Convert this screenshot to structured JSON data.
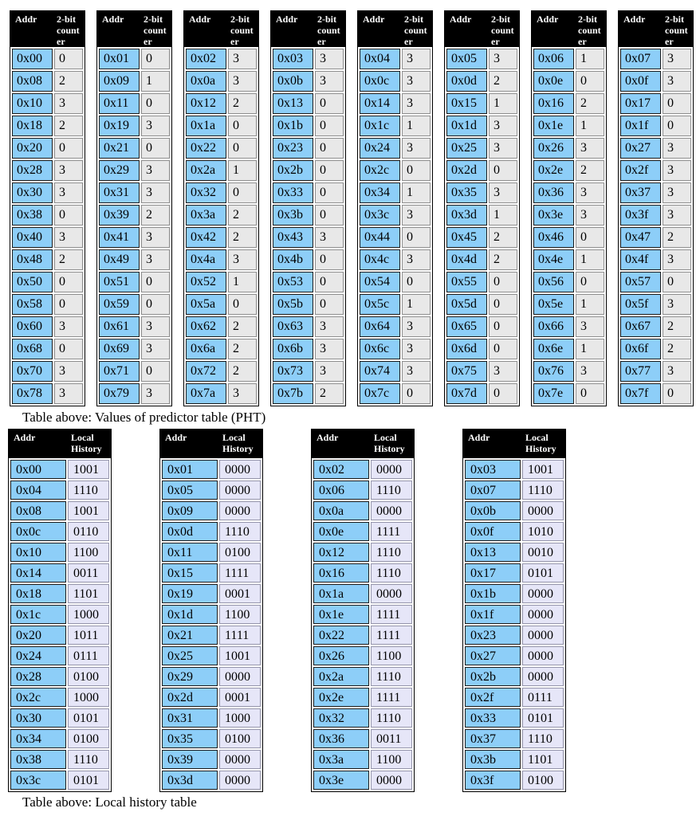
{
  "colors": {
    "header_bg": "#000000",
    "header_text": "#ffffff",
    "addr_cell": "#8DCEF8",
    "counter_cell": "#E8E8E8",
    "history_cell": "#E6E6F8",
    "page_bg": "#ffffff"
  },
  "pht": {
    "caption": "Table above: Values of predictor table (PHT)",
    "col_headers": [
      "Addr",
      "2-bit counter"
    ],
    "tables": [
      {
        "rows": [
          [
            "0x00",
            "0"
          ],
          [
            "0x08",
            "2"
          ],
          [
            "0x10",
            "3"
          ],
          [
            "0x18",
            "2"
          ],
          [
            "0x20",
            "0"
          ],
          [
            "0x28",
            "3"
          ],
          [
            "0x30",
            "3"
          ],
          [
            "0x38",
            "0"
          ],
          [
            "0x40",
            "3"
          ],
          [
            "0x48",
            "2"
          ],
          [
            "0x50",
            "0"
          ],
          [
            "0x58",
            "0"
          ],
          [
            "0x60",
            "3"
          ],
          [
            "0x68",
            "0"
          ],
          [
            "0x70",
            "3"
          ],
          [
            "0x78",
            "3"
          ]
        ]
      },
      {
        "rows": [
          [
            "0x01",
            "0"
          ],
          [
            "0x09",
            "1"
          ],
          [
            "0x11",
            "0"
          ],
          [
            "0x19",
            "3"
          ],
          [
            "0x21",
            "0"
          ],
          [
            "0x29",
            "3"
          ],
          [
            "0x31",
            "3"
          ],
          [
            "0x39",
            "2"
          ],
          [
            "0x41",
            "3"
          ],
          [
            "0x49",
            "3"
          ],
          [
            "0x51",
            "0"
          ],
          [
            "0x59",
            "0"
          ],
          [
            "0x61",
            "3"
          ],
          [
            "0x69",
            "3"
          ],
          [
            "0x71",
            "0"
          ],
          [
            "0x79",
            "3"
          ]
        ]
      },
      {
        "rows": [
          [
            "0x02",
            "3"
          ],
          [
            "0x0a",
            "3"
          ],
          [
            "0x12",
            "2"
          ],
          [
            "0x1a",
            "0"
          ],
          [
            "0x22",
            "0"
          ],
          [
            "0x2a",
            "1"
          ],
          [
            "0x32",
            "0"
          ],
          [
            "0x3a",
            "2"
          ],
          [
            "0x42",
            "2"
          ],
          [
            "0x4a",
            "3"
          ],
          [
            "0x52",
            "1"
          ],
          [
            "0x5a",
            "0"
          ],
          [
            "0x62",
            "2"
          ],
          [
            "0x6a",
            "2"
          ],
          [
            "0x72",
            "2"
          ],
          [
            "0x7a",
            "3"
          ]
        ]
      },
      {
        "rows": [
          [
            "0x03",
            "3"
          ],
          [
            "0x0b",
            "3"
          ],
          [
            "0x13",
            "0"
          ],
          [
            "0x1b",
            "0"
          ],
          [
            "0x23",
            "0"
          ],
          [
            "0x2b",
            "0"
          ],
          [
            "0x33",
            "0"
          ],
          [
            "0x3b",
            "0"
          ],
          [
            "0x43",
            "3"
          ],
          [
            "0x4b",
            "0"
          ],
          [
            "0x53",
            "0"
          ],
          [
            "0x5b",
            "0"
          ],
          [
            "0x63",
            "3"
          ],
          [
            "0x6b",
            "3"
          ],
          [
            "0x73",
            "3"
          ],
          [
            "0x7b",
            "2"
          ]
        ]
      },
      {
        "rows": [
          [
            "0x04",
            "3"
          ],
          [
            "0x0c",
            "3"
          ],
          [
            "0x14",
            "3"
          ],
          [
            "0x1c",
            "1"
          ],
          [
            "0x24",
            "3"
          ],
          [
            "0x2c",
            "0"
          ],
          [
            "0x34",
            "1"
          ],
          [
            "0x3c",
            "3"
          ],
          [
            "0x44",
            "0"
          ],
          [
            "0x4c",
            "3"
          ],
          [
            "0x54",
            "0"
          ],
          [
            "0x5c",
            "1"
          ],
          [
            "0x64",
            "3"
          ],
          [
            "0x6c",
            "3"
          ],
          [
            "0x74",
            "3"
          ],
          [
            "0x7c",
            "0"
          ]
        ]
      },
      {
        "rows": [
          [
            "0x05",
            "3"
          ],
          [
            "0x0d",
            "2"
          ],
          [
            "0x15",
            "1"
          ],
          [
            "0x1d",
            "3"
          ],
          [
            "0x25",
            "3"
          ],
          [
            "0x2d",
            "0"
          ],
          [
            "0x35",
            "3"
          ],
          [
            "0x3d",
            "1"
          ],
          [
            "0x45",
            "2"
          ],
          [
            "0x4d",
            "2"
          ],
          [
            "0x55",
            "0"
          ],
          [
            "0x5d",
            "0"
          ],
          [
            "0x65",
            "0"
          ],
          [
            "0x6d",
            "0"
          ],
          [
            "0x75",
            "3"
          ],
          [
            "0x7d",
            "0"
          ]
        ]
      },
      {
        "rows": [
          [
            "0x06",
            "1"
          ],
          [
            "0x0e",
            "0"
          ],
          [
            "0x16",
            "2"
          ],
          [
            "0x1e",
            "1"
          ],
          [
            "0x26",
            "3"
          ],
          [
            "0x2e",
            "2"
          ],
          [
            "0x36",
            "3"
          ],
          [
            "0x3e",
            "3"
          ],
          [
            "0x46",
            "0"
          ],
          [
            "0x4e",
            "1"
          ],
          [
            "0x56",
            "0"
          ],
          [
            "0x5e",
            "1"
          ],
          [
            "0x66",
            "3"
          ],
          [
            "0x6e",
            "1"
          ],
          [
            "0x76",
            "3"
          ],
          [
            "0x7e",
            "0"
          ]
        ]
      },
      {
        "rows": [
          [
            "0x07",
            "3"
          ],
          [
            "0x0f",
            "3"
          ],
          [
            "0x17",
            "0"
          ],
          [
            "0x1f",
            "0"
          ],
          [
            "0x27",
            "3"
          ],
          [
            "0x2f",
            "3"
          ],
          [
            "0x37",
            "3"
          ],
          [
            "0x3f",
            "3"
          ],
          [
            "0x47",
            "2"
          ],
          [
            "0x4f",
            "3"
          ],
          [
            "0x57",
            "0"
          ],
          [
            "0x5f",
            "3"
          ],
          [
            "0x67",
            "2"
          ],
          [
            "0x6f",
            "2"
          ],
          [
            "0x77",
            "3"
          ],
          [
            "0x7f",
            "0"
          ]
        ]
      }
    ]
  },
  "lht": {
    "caption": "Table above: Local history table",
    "col_headers": [
      "Addr",
      "Local History"
    ],
    "tables": [
      {
        "rows": [
          [
            "0x00",
            "1001"
          ],
          [
            "0x04",
            "1110"
          ],
          [
            "0x08",
            "1001"
          ],
          [
            "0x0c",
            "0110"
          ],
          [
            "0x10",
            "1100"
          ],
          [
            "0x14",
            "0011"
          ],
          [
            "0x18",
            "1101"
          ],
          [
            "0x1c",
            "1000"
          ],
          [
            "0x20",
            "1011"
          ],
          [
            "0x24",
            "0111"
          ],
          [
            "0x28",
            "0100"
          ],
          [
            "0x2c",
            "1000"
          ],
          [
            "0x30",
            "0101"
          ],
          [
            "0x34",
            "0100"
          ],
          [
            "0x38",
            "1110"
          ],
          [
            "0x3c",
            "0101"
          ]
        ]
      },
      {
        "rows": [
          [
            "0x01",
            "0000"
          ],
          [
            "0x05",
            "0000"
          ],
          [
            "0x09",
            "0000"
          ],
          [
            "0x0d",
            "1110"
          ],
          [
            "0x11",
            "0100"
          ],
          [
            "0x15",
            "1111"
          ],
          [
            "0x19",
            "0001"
          ],
          [
            "0x1d",
            "1100"
          ],
          [
            "0x21",
            "1111"
          ],
          [
            "0x25",
            "1001"
          ],
          [
            "0x29",
            "0000"
          ],
          [
            "0x2d",
            "0001"
          ],
          [
            "0x31",
            "1000"
          ],
          [
            "0x35",
            "0100"
          ],
          [
            "0x39",
            "0000"
          ],
          [
            "0x3d",
            "0000"
          ]
        ]
      },
      {
        "rows": [
          [
            "0x02",
            "0000"
          ],
          [
            "0x06",
            "1110"
          ],
          [
            "0x0a",
            "0000"
          ],
          [
            "0x0e",
            "1111"
          ],
          [
            "0x12",
            "1110"
          ],
          [
            "0x16",
            "1110"
          ],
          [
            "0x1a",
            "0000"
          ],
          [
            "0x1e",
            "1111"
          ],
          [
            "0x22",
            "1111"
          ],
          [
            "0x26",
            "1100"
          ],
          [
            "0x2a",
            "1110"
          ],
          [
            "0x2e",
            "1111"
          ],
          [
            "0x32",
            "1110"
          ],
          [
            "0x36",
            "0011"
          ],
          [
            "0x3a",
            "1100"
          ],
          [
            "0x3e",
            "0000"
          ]
        ]
      },
      {
        "rows": [
          [
            "0x03",
            "1001"
          ],
          [
            "0x07",
            "1110"
          ],
          [
            "0x0b",
            "0000"
          ],
          [
            "0x0f",
            "1010"
          ],
          [
            "0x13",
            "0010"
          ],
          [
            "0x17",
            "0101"
          ],
          [
            "0x1b",
            "0000"
          ],
          [
            "0x1f",
            "0000"
          ],
          [
            "0x23",
            "0000"
          ],
          [
            "0x27",
            "0000"
          ],
          [
            "0x2b",
            "0000"
          ],
          [
            "0x2f",
            "0111"
          ],
          [
            "0x33",
            "0101"
          ],
          [
            "0x37",
            "1110"
          ],
          [
            "0x3b",
            "1101"
          ],
          [
            "0x3f",
            "0100"
          ]
        ]
      }
    ]
  }
}
